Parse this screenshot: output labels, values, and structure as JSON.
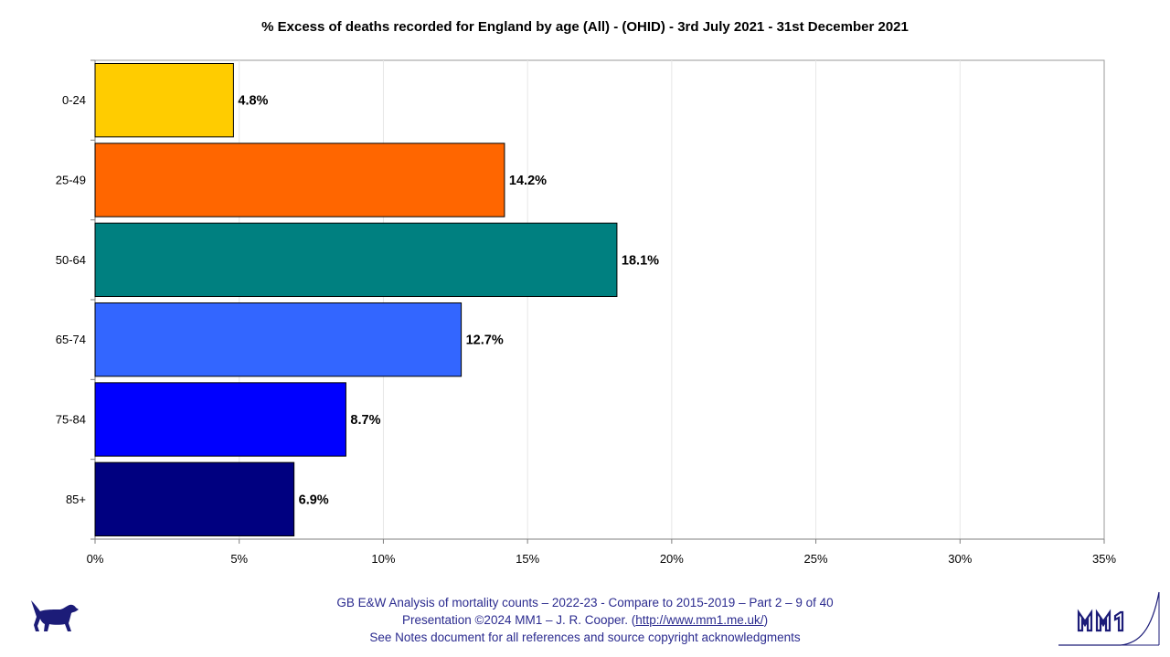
{
  "chart_data": {
    "type": "bar",
    "orientation": "horizontal",
    "title": "% Excess of deaths recorded for England by age (All) - (OHID) - 3rd July 2021 - 31st December 2021",
    "categories": [
      "0-24",
      "25-49",
      "50-64",
      "65-74",
      "75-84",
      "85+"
    ],
    "values": [
      4.8,
      14.2,
      18.1,
      12.7,
      8.7,
      6.9
    ],
    "value_labels": [
      "4.8%",
      "14.2%",
      "18.1%",
      "12.7%",
      "8.7%",
      "6.9%"
    ],
    "colors": [
      "#ffcc00",
      "#ff6600",
      "#008080",
      "#3366ff",
      "#0000ff",
      "#000080"
    ],
    "xlim": [
      0,
      35
    ],
    "xticks": [
      0,
      5,
      10,
      15,
      20,
      25,
      30,
      35
    ],
    "xtick_labels": [
      "0%",
      "5%",
      "10%",
      "15%",
      "20%",
      "25%",
      "30%",
      "35%"
    ],
    "xlabel": "",
    "ylabel": "",
    "grid": true
  },
  "footer": {
    "line1": "GB E&W Analysis of mortality counts – 2022-23 - Compare to 2015-2019 – Part 2 – 9 of 40",
    "line2_prefix": "Presentation ©2024 MM1 – J. R. Cooper. (",
    "line2_link": "http://www.mm1.me.uk/",
    "line2_suffix": ")",
    "line3": "See Notes document for all references and source copyright acknowledgments",
    "text_color": "#2b2b8f"
  },
  "logos": {
    "left": "dog-icon",
    "right": "mm1-logo"
  }
}
